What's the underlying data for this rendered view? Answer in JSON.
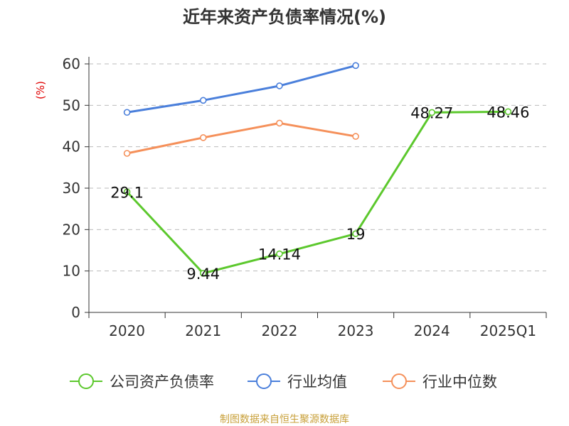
{
  "chart_data": {
    "type": "line",
    "title": "近年来资产负债率情况(%)",
    "ylabel": "(%)",
    "categories": [
      "2020",
      "2021",
      "2022",
      "2023",
      "2024",
      "2025Q1"
    ],
    "ylim": [
      0,
      60
    ],
    "yticks": [
      0,
      10,
      20,
      30,
      40,
      50,
      60
    ],
    "grid": true,
    "legend_position": "bottom",
    "series": [
      {
        "name": "公司资产负债率",
        "color": "#5cc82d",
        "values": [
          29.1,
          9.44,
          14.14,
          19,
          48.27,
          48.46
        ],
        "labels": [
          "29.1",
          "9.44",
          "14.14",
          "19",
          "48.27",
          "48.46"
        ]
      },
      {
        "name": "行业均值",
        "color": "#4a7fdb",
        "values": [
          48.3,
          51.2,
          54.7,
          59.6,
          null,
          null
        ]
      },
      {
        "name": "行业中位数",
        "color": "#f5905a",
        "values": [
          38.4,
          42.2,
          45.7,
          42.5,
          null,
          null
        ]
      }
    ]
  },
  "source": "制图数据来自恒生聚源数据库"
}
